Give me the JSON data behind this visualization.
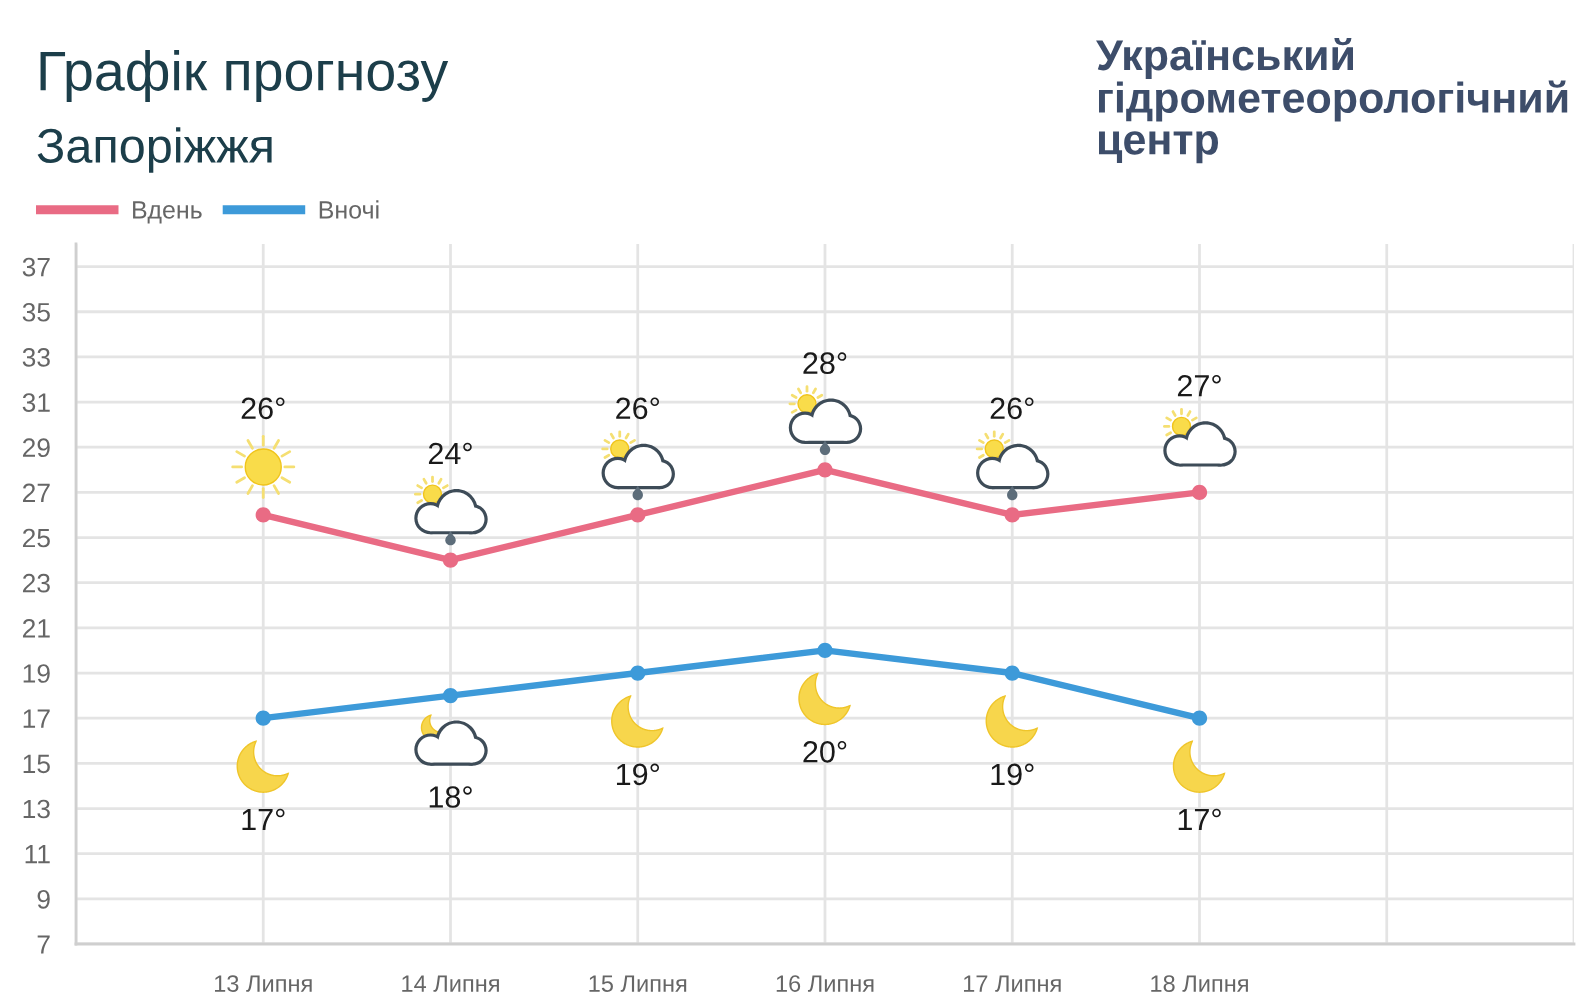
{
  "chart_data": {
    "type": "line",
    "title": "Графік прогнозу",
    "subtitle": "Запоріжжя",
    "annotations": [
      "Український\nгідрометеорологічний\nцентр"
    ],
    "categories": [
      null,
      "13 Липня",
      "14 Липня",
      "15 Липня",
      "16 Липня",
      "17 Липня",
      "18 Липня",
      null,
      null
    ],
    "series": [
      {
        "name": "Вдень",
        "color": "#e96b84",
        "values": [
          null,
          26,
          24,
          26,
          28,
          26,
          27,
          null,
          null
        ],
        "value_labels": [
          null,
          "26°",
          "24°",
          "26°",
          "28°",
          "26°",
          "27°",
          null,
          null
        ]
      },
      {
        "name": "Вночі",
        "color": "#3d9ad9",
        "values": [
          null,
          17,
          18,
          19,
          20,
          19,
          17,
          null,
          null
        ],
        "value_labels": [
          null,
          "17°",
          "18°",
          "19°",
          "20°",
          "19°",
          "17°",
          null,
          null
        ]
      }
    ],
    "ylim": [
      7,
      38
    ],
    "yticks": [
      7,
      9,
      11,
      13,
      15,
      17,
      19,
      21,
      23,
      25,
      27,
      29,
      31,
      33,
      35,
      37
    ],
    "grid": true,
    "legend": "top left",
    "marker": "circle",
    "line_style": "solid"
  }
}
